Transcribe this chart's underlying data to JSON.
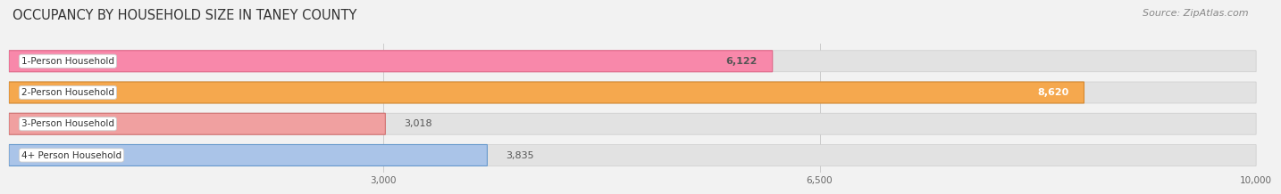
{
  "title": "OCCUPANCY BY HOUSEHOLD SIZE IN TANEY COUNTY",
  "source": "Source: ZipAtlas.com",
  "categories": [
    "1-Person Household",
    "2-Person Household",
    "3-Person Household",
    "4+ Person Household"
  ],
  "values": [
    6122,
    8620,
    3018,
    3835
  ],
  "bar_colors": [
    "#f888aa",
    "#f5a84e",
    "#f0a0a0",
    "#aac4e8"
  ],
  "bar_edge_colors": [
    "#e06688",
    "#d48830",
    "#d07070",
    "#6699cc"
  ],
  "xlim_min": 0,
  "xlim_max": 10000,
  "xticks": [
    3000,
    6500,
    10000
  ],
  "background_color": "#f2f2f2",
  "bar_bg_color": "#e2e2e2",
  "title_fontsize": 10.5,
  "source_fontsize": 8,
  "label_fontsize": 7.5,
  "value_fontsize": 8,
  "value_colors": [
    "#555555",
    "#ffffff",
    "#555555",
    "#555555"
  ]
}
